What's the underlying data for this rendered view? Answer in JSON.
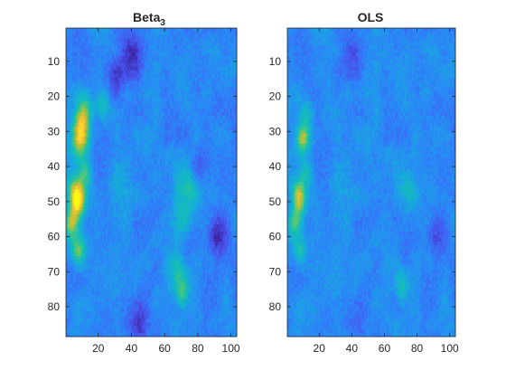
{
  "chart_data": [
    {
      "type": "heatmap",
      "title": "Beta",
      "title_sub": "3",
      "xlabel": "",
      "ylabel": "",
      "xlim": [
        1,
        103
      ],
      "ylim": [
        1,
        88
      ],
      "y_reversed": true,
      "xticks": [
        20,
        40,
        60,
        80,
        100
      ],
      "yticks": [
        10,
        20,
        30,
        40,
        50,
        60,
        70,
        80
      ],
      "colormap": "parula",
      "grid": false,
      "features": [
        {
          "x": 9,
          "y": 32,
          "s": 3.5,
          "a": 1.0
        },
        {
          "x": 6,
          "y": 47,
          "s": 3.2,
          "a": 0.75
        },
        {
          "x": 8,
          "y": 50,
          "s": 3.0,
          "a": 0.9
        },
        {
          "x": 4,
          "y": 56,
          "s": 3.0,
          "a": 0.85
        },
        {
          "x": 8,
          "y": 64,
          "s": 3.0,
          "a": 0.75
        },
        {
          "x": 12,
          "y": 42,
          "s": 3.0,
          "a": 0.55
        },
        {
          "x": 12,
          "y": 23,
          "s": 3.5,
          "a": 0.45
        },
        {
          "x": 10,
          "y": 27,
          "s": 3.0,
          "a": 0.5
        },
        {
          "x": 22,
          "y": 22,
          "s": 3.0,
          "a": 0.35
        },
        {
          "x": 74,
          "y": 46,
          "s": 4.5,
          "a": 0.45
        },
        {
          "x": 70,
          "y": 55,
          "s": 4.0,
          "a": 0.35
        },
        {
          "x": 68,
          "y": 70,
          "s": 4.0,
          "a": 0.35
        },
        {
          "x": 70,
          "y": 76,
          "s": 3.0,
          "a": 0.45
        },
        {
          "x": 33,
          "y": 46,
          "s": 6.0,
          "a": 0.18
        },
        {
          "x": 40,
          "y": 8,
          "s": 5.0,
          "a": -0.35
        },
        {
          "x": 92,
          "y": 60,
          "s": 4.0,
          "a": -0.35
        },
        {
          "x": 45,
          "y": 85,
          "s": 4.0,
          "a": -0.4
        },
        {
          "x": 30,
          "y": 15,
          "s": 4.0,
          "a": -0.25
        },
        {
          "x": 80,
          "y": 40,
          "s": 3.5,
          "a": -0.25
        }
      ]
    },
    {
      "type": "heatmap",
      "title": "OLS",
      "title_sub": "",
      "xlabel": "",
      "ylabel": "",
      "xlim": [
        1,
        103
      ],
      "ylim": [
        1,
        88
      ],
      "y_reversed": true,
      "xticks": [
        20,
        40,
        60,
        80,
        100
      ],
      "yticks": [
        10,
        20,
        30,
        40,
        50,
        60,
        70,
        80
      ],
      "colormap": "parula",
      "grid": false,
      "features": [
        {
          "x": 10,
          "y": 32,
          "s": 2.8,
          "a": 0.85
        },
        {
          "x": 7,
          "y": 47,
          "s": 2.8,
          "a": 0.55
        },
        {
          "x": 8,
          "y": 50,
          "s": 2.8,
          "a": 0.6
        },
        {
          "x": 5,
          "y": 56,
          "s": 2.8,
          "a": 0.6
        },
        {
          "x": 8,
          "y": 64,
          "s": 2.8,
          "a": 0.5
        },
        {
          "x": 12,
          "y": 42,
          "s": 2.8,
          "a": 0.4
        },
        {
          "x": 12,
          "y": 25,
          "s": 3.0,
          "a": 0.3
        },
        {
          "x": 74,
          "y": 47,
          "s": 3.5,
          "a": 0.35
        },
        {
          "x": 70,
          "y": 74,
          "s": 3.0,
          "a": 0.35
        },
        {
          "x": 33,
          "y": 46,
          "s": 6.0,
          "a": 0.12
        },
        {
          "x": 40,
          "y": 8,
          "s": 5.0,
          "a": -0.2
        },
        {
          "x": 92,
          "y": 60,
          "s": 4.0,
          "a": -0.2
        },
        {
          "x": 45,
          "y": 85,
          "s": 4.0,
          "a": -0.2
        }
      ]
    }
  ]
}
